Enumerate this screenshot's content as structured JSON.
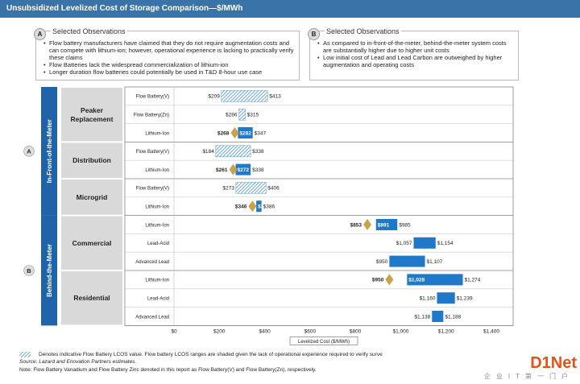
{
  "title": "Unsubsidized Levelized Cost of Storage Comparison—$/MWh",
  "obs_a": {
    "badge": "A",
    "heading": "Selected Observations",
    "items": [
      "Flow battery manufacturers have claimed that they do not require augmentation costs and can compete with lithium-ion; however, operational experience is lacking to practically verify these claims",
      "Flow Batteries lack the widespread commercialization of lithium-ion",
      "Longer duration flow batteries could potentially be used in T&D 8-hour use case"
    ]
  },
  "obs_b": {
    "badge": "B",
    "heading": "Selected Observations",
    "items": [
      "As compared to in-front-of-the-meter, behind-the-meter system costs are substantially higher due to higher unit costs",
      "Low initial cost of Lead and Lead Carbon are outweighed by higher augmentation and operating costs"
    ]
  },
  "chart_data": {
    "type": "bar",
    "subtype": "floating-range",
    "xlabel": "Levelized Cost ($/MWh)",
    "xlim": [
      0,
      1400
    ],
    "ticks": [
      "$0",
      "$200",
      "$400",
      "$600",
      "$800",
      "$1,000",
      "$1,200",
      "$1,400"
    ],
    "groups": [
      {
        "name": "In-Front-of-the-Meter",
        "badge": "A",
        "use_cases": [
          {
            "name": "Peaker Replacement",
            "rows": [
              {
                "tech": "Flow Battery(V)",
                "low": 209,
                "high": 413,
                "low_label": "$209",
                "high_label": "$413",
                "hatched": true
              },
              {
                "tech": "Flow Battery(Zn)",
                "low": 286,
                "high": 315,
                "low_label": "$286",
                "high_label": "$315",
                "hatched": true
              },
              {
                "tech": "Lithium-Ion",
                "low": 282,
                "high": 347,
                "low_label": "$282",
                "high_label": "$347",
                "marker": 268,
                "marker_label": "$268"
              }
            ]
          },
          {
            "name": "Distribution",
            "rows": [
              {
                "tech": "Flow Battery(V)",
                "low": 184,
                "high": 338,
                "low_label": "$184",
                "high_label": "$338",
                "hatched": true
              },
              {
                "tech": "Lithium-Ion",
                "low": 272,
                "high": 338,
                "low_label": "$272",
                "high_label": "$338",
                "marker": 261,
                "marker_label": "$261"
              }
            ]
          },
          {
            "name": "Microgrid",
            "rows": [
              {
                "tech": "Flow Battery(V)",
                "low": 273,
                "high": 406,
                "low_label": "$273",
                "high_label": "$406",
                "hatched": true
              },
              {
                "tech": "Lithium-Ion",
                "low": 363,
                "high": 386,
                "low_label": "$363",
                "high_label": "$386",
                "marker": 346,
                "marker_label": "$346"
              }
            ]
          }
        ]
      },
      {
        "name": "Behind-the-Meter",
        "badge": "B",
        "use_cases": [
          {
            "name": "Commercial",
            "rows": [
              {
                "tech": "Lithium-Ion",
                "low": 891,
                "high": 985,
                "low_label": "$891",
                "high_label": "$985",
                "marker": 853,
                "marker_label": "$853"
              },
              {
                "tech": "Lead-Acid",
                "low": 1057,
                "high": 1154,
                "low_label": "$1,057",
                "high_label": "$1,154"
              },
              {
                "tech": "Advanced Lead",
                "low": 950,
                "high": 1107,
                "low_label": "$950",
                "high_label": "$1,107"
              }
            ]
          },
          {
            "name": "Residential",
            "rows": [
              {
                "tech": "Lithium-Ion",
                "low": 1028,
                "high": 1274,
                "low_label": "$1,028",
                "high_label": "$1,274",
                "marker": 950,
                "marker_label": "$950"
              },
              {
                "tech": "Lead-Acid",
                "low": 1160,
                "high": 1239,
                "low_label": "$1,160",
                "high_label": "$1,239"
              },
              {
                "tech": "Advanced Lead",
                "low": 1138,
                "high": 1188,
                "low_label": "$1,138",
                "high_label": "$1,188"
              }
            ]
          }
        ]
      }
    ],
    "colors": {
      "bar": "#1f78c8",
      "marker": "#c9a24a",
      "hatch": "#4a90c8",
      "header": "#1f64a8",
      "usecase_bg": "#d9d9d9"
    }
  },
  "footnotes": [
    "Denotes indicative Flow Battery LCOS value. Flow battery LCOS ranges are shaded given the lack of operational experience required to verify surve",
    "Source:  Lazard and Enovation Partners estimates.",
    "Note:    Flow Battery Vanadium and Flow Battery Zinc denoted in this report as Flow Battery(V) and Flow Battery(Zn), respectively."
  ],
  "watermark": {
    "brand": "D1Net",
    "tagline": "企业IT第一门户"
  }
}
